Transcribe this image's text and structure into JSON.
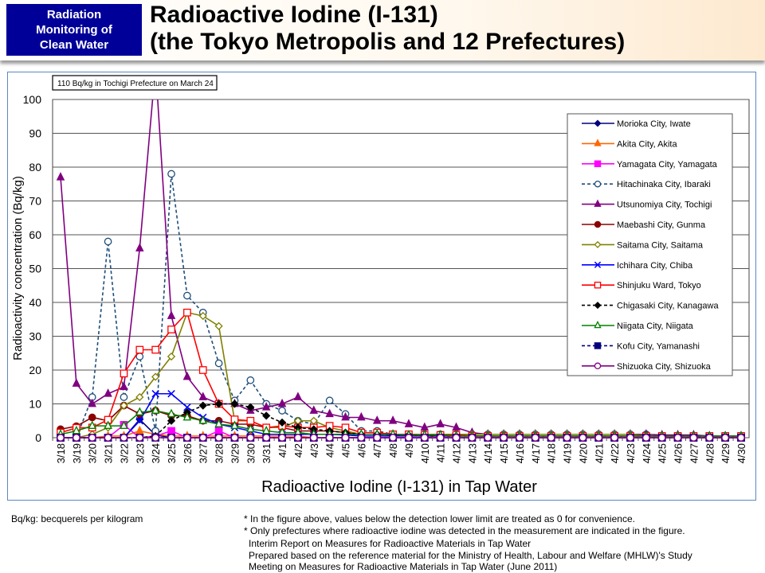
{
  "header": {
    "badge_lines": [
      "Radiation",
      "Monitoring of",
      "Clean Water"
    ],
    "title_lines": [
      "Radioactive Iodine (I-131)",
      "(the Tokyo Metropolis and 12 Prefectures)"
    ]
  },
  "chart_data": {
    "type": "line",
    "annotation": "110 Bq/kg in Tochigi Prefecture on March 24",
    "xlabel": "Radioactive Iodine (I-131) in Tap Water",
    "ylabel": "Radioactivity concentration (Bq/kg)",
    "ylim": [
      0,
      100
    ],
    "yticks": [
      0,
      10,
      20,
      30,
      40,
      50,
      60,
      70,
      80,
      90,
      100
    ],
    "grid": true,
    "legend_position": "right",
    "categories": [
      "3/18",
      "3/19",
      "3/20",
      "3/21",
      "3/22",
      "3/23",
      "3/24",
      "3/25",
      "3/26",
      "3/27",
      "3/28",
      "3/29",
      "3/30",
      "3/31",
      "4/1",
      "4/2",
      "4/3",
      "4/4",
      "4/5",
      "4/6",
      "4/7",
      "4/8",
      "4/9",
      "4/10",
      "4/11",
      "4/12",
      "4/13",
      "4/14",
      "4/15",
      "4/16",
      "4/17",
      "4/18",
      "4/19",
      "4/20",
      "4/21",
      "4/22",
      "4/23",
      "4/24",
      "4/25",
      "4/26",
      "4/27",
      "4/28",
      "4/29",
      "4/30"
    ],
    "series": [
      {
        "name": "Morioka City, Iwate",
        "color": "#000080",
        "dash": false,
        "marker": "diamond",
        "filled": true,
        "values": [
          0,
          0,
          0,
          0,
          0,
          5.4,
          0.8,
          0,
          0,
          0,
          0,
          0,
          0,
          0,
          0,
          0,
          0,
          0,
          0,
          0,
          0,
          0,
          0,
          0,
          0,
          0,
          0,
          0,
          0,
          0,
          0,
          0,
          0,
          0,
          0,
          0,
          0,
          0,
          0,
          0,
          0,
          0,
          0,
          0
        ]
      },
      {
        "name": "Akita City, Akita",
        "color": "#ff6600",
        "dash": false,
        "marker": "triangle",
        "filled": true,
        "values": [
          0,
          0,
          0,
          0.5,
          0.5,
          2,
          1,
          0.5,
          0.5,
          0.5,
          0.5,
          0.5,
          0.5,
          0.5,
          0.5,
          0.5,
          0,
          0,
          0,
          0,
          0,
          0,
          0,
          0,
          0,
          0,
          0,
          0,
          0,
          0,
          0,
          0,
          0,
          0,
          0,
          0,
          0,
          0,
          0,
          0,
          0,
          0,
          0,
          0
        ]
      },
      {
        "name": "Yamagata City, Yamagata",
        "color": "#ff00ff",
        "dash": false,
        "marker": "square",
        "filled": true,
        "values": [
          0,
          0,
          0,
          0,
          3.8,
          0,
          0.5,
          2,
          0,
          0,
          2,
          0,
          0,
          0,
          0,
          0,
          0,
          0,
          0,
          0,
          0,
          0,
          0,
          0,
          0,
          0,
          0,
          0,
          0,
          0,
          0,
          0,
          0,
          0,
          0,
          0,
          0,
          0,
          0,
          0,
          0,
          0,
          0,
          0
        ]
      },
      {
        "name": "Hitachinaka City, Ibaraki",
        "color": "#1f4e79",
        "dash": true,
        "marker": "circle",
        "filled": false,
        "values": [
          0,
          0,
          12,
          58,
          12,
          24,
          2,
          78,
          42,
          37,
          22,
          11,
          17,
          10,
          8,
          5,
          4,
          11,
          7,
          2,
          2,
          1,
          1,
          1,
          1,
          1,
          1,
          1,
          1,
          1,
          1,
          1,
          1,
          1,
          1,
          1,
          1,
          1,
          0.5,
          0.5,
          0.5,
          0,
          0,
          0
        ]
      },
      {
        "name": "Utsunomiya City, Tochigi",
        "color": "#800080",
        "dash": false,
        "marker": "triangle",
        "filled": true,
        "values": [
          77,
          16,
          10,
          13,
          15,
          56,
          110,
          36,
          18,
          12,
          10,
          10,
          8,
          9,
          10,
          12,
          8,
          7,
          6,
          6,
          5,
          5,
          4,
          3,
          4,
          3,
          1.5,
          1,
          1,
          1,
          1,
          1,
          1,
          1,
          1,
          1,
          1,
          1,
          0.8,
          0.8,
          0.8,
          0.5,
          0.5,
          0.5
        ]
      },
      {
        "name": "Maebashi City, Gunma",
        "color": "#8b0000",
        "dash": false,
        "marker": "circle",
        "filled": true,
        "values": [
          2.5,
          3.4,
          6,
          5,
          9.5,
          7,
          8,
          6.5,
          6.5,
          5,
          5,
          4,
          4,
          3,
          3,
          2,
          2,
          2,
          1.5,
          1,
          1,
          0.8,
          0.8,
          0.5,
          0.5,
          0.5,
          0.5,
          0.5,
          0.5,
          0.5,
          0.5,
          0.5,
          0.5,
          0.5,
          0.5,
          0.5,
          0.5,
          0.5,
          0.5,
          0.5,
          0.5,
          0.5,
          0.5,
          0.5
        ]
      },
      {
        "name": "Saitama City, Saitama",
        "color": "#808000",
        "dash": false,
        "marker": "diamond",
        "filled": false,
        "values": [
          0,
          0,
          1,
          3,
          9.5,
          12,
          18,
          24,
          37,
          36,
          33,
          5,
          5,
          3,
          3,
          5,
          5,
          3,
          2,
          1,
          1,
          1,
          1,
          1,
          1,
          1,
          1,
          1,
          1,
          1,
          1,
          1,
          1,
          1,
          1,
          1,
          1,
          0.5,
          0.5,
          0.5,
          0.5,
          0.5,
          0.5,
          0.5
        ]
      },
      {
        "name": "Ichihara City, Chiba",
        "color": "#0000ff",
        "dash": false,
        "marker": "x",
        "filled": false,
        "values": [
          0,
          0,
          0,
          0,
          0,
          5,
          13,
          13,
          9,
          6,
          4,
          3,
          2,
          1,
          1,
          1,
          1,
          1,
          0.8,
          0.5,
          0.5,
          0.5,
          0.5,
          0.5,
          0.5,
          0.5,
          0.5,
          0.5,
          0.5,
          0.5,
          0.5,
          0.5,
          0.5,
          0.5,
          0.5,
          0.5,
          0.5,
          0.5,
          0.5,
          0.5,
          0.5,
          0.5,
          0.5,
          0.5
        ]
      },
      {
        "name": "Shinjuku Ward, Tokyo",
        "color": "#ff0000",
        "dash": false,
        "marker": "square",
        "filled": false,
        "values": [
          1.5,
          2.9,
          3,
          5.3,
          19,
          26,
          26,
          32,
          37,
          20,
          10,
          5.4,
          5,
          3,
          3.5,
          3,
          3,
          3.5,
          3,
          1.5,
          1.5,
          1,
          1,
          0.8,
          0.8,
          0.8,
          0.5,
          0.5,
          0.5,
          0.5,
          0.5,
          0.5,
          0.5,
          0.5,
          0.5,
          0.5,
          0.5,
          0.5,
          0.5,
          0.5,
          0.5,
          0.5,
          0.5,
          0.5
        ]
      },
      {
        "name": "Chigasaki City, Kanagawa",
        "color": "#000000",
        "dash": true,
        "marker": "diamond",
        "filled": true,
        "values": [
          0,
          0,
          0,
          0,
          0,
          0,
          0.5,
          5,
          7.5,
          9.5,
          10,
          10,
          9,
          6.5,
          4.5,
          3,
          2.5,
          2,
          1.5,
          1,
          1,
          0.8,
          0.8,
          0.5,
          0.5,
          0.5,
          0.5,
          0.5,
          0.5,
          0.5,
          0.5,
          0.5,
          0.5,
          0.5,
          0.5,
          0.5,
          0.5,
          0.5,
          0.5,
          0.5,
          0.5,
          0.5,
          0.5,
          0.5
        ]
      },
      {
        "name": "Niigata City, Niigata",
        "color": "#008000",
        "dash": false,
        "marker": "triangle",
        "filled": false,
        "values": [
          1,
          2,
          3.5,
          3.5,
          3.5,
          7.5,
          8,
          7,
          6,
          5,
          4,
          3.5,
          2.5,
          2,
          1.5,
          1.5,
          1,
          1,
          1,
          1,
          1,
          1,
          0.8,
          0.8,
          0.8,
          0.5,
          0.5,
          0.5,
          0.5,
          0.5,
          0.5,
          0.5,
          0.5,
          0.5,
          0.5,
          0.5,
          0.5,
          0.5,
          0.5,
          0.5,
          0.5,
          0.5,
          0.5,
          0.5
        ]
      },
      {
        "name": "Kofu City, Yamanashi",
        "color": "#000080",
        "dash": true,
        "marker": "square",
        "filled": true,
        "values": [
          0,
          0,
          0,
          0,
          0,
          0,
          0,
          0,
          0,
          0,
          0,
          0,
          0,
          0,
          0,
          0,
          0,
          0,
          0,
          0,
          0,
          0,
          0,
          0,
          0,
          0,
          0,
          0,
          0,
          0,
          0,
          0,
          0,
          0,
          0,
          0,
          0,
          0,
          0,
          0,
          0,
          0,
          0,
          0
        ]
      },
      {
        "name": "Shizuoka City, Shizuoka",
        "color": "#800080",
        "dash": false,
        "marker": "circle",
        "filled": false,
        "values": [
          0,
          0,
          0,
          0,
          0,
          0,
          0,
          0,
          0,
          0,
          0,
          0,
          0,
          0,
          0,
          0,
          0,
          0,
          0,
          0,
          0,
          0,
          0,
          0,
          0,
          0,
          0,
          0,
          0,
          0,
          0,
          0,
          0,
          0,
          0,
          0,
          0,
          0,
          0,
          0,
          0,
          0,
          0,
          0
        ]
      }
    ]
  },
  "footer": {
    "unit_note": "Bq/kg: becquerels per kilogram",
    "notes": [
      "* In the figure above, values below the detection lower limit are treated as 0 for convenience.",
      "* Only prefectures where radioactive iodine was detected in the measurement are indicated in the figure."
    ],
    "source_lines": [
      "Interim Report on Measures for Radioactive Materials in Tap Water",
      "Prepared based on the reference material for the Ministry of Health, Labour and Welfare (MHLW)'s Study",
      "Meeting on Measures for Radioactive Materials in Tap Water (June 2011)"
    ]
  }
}
